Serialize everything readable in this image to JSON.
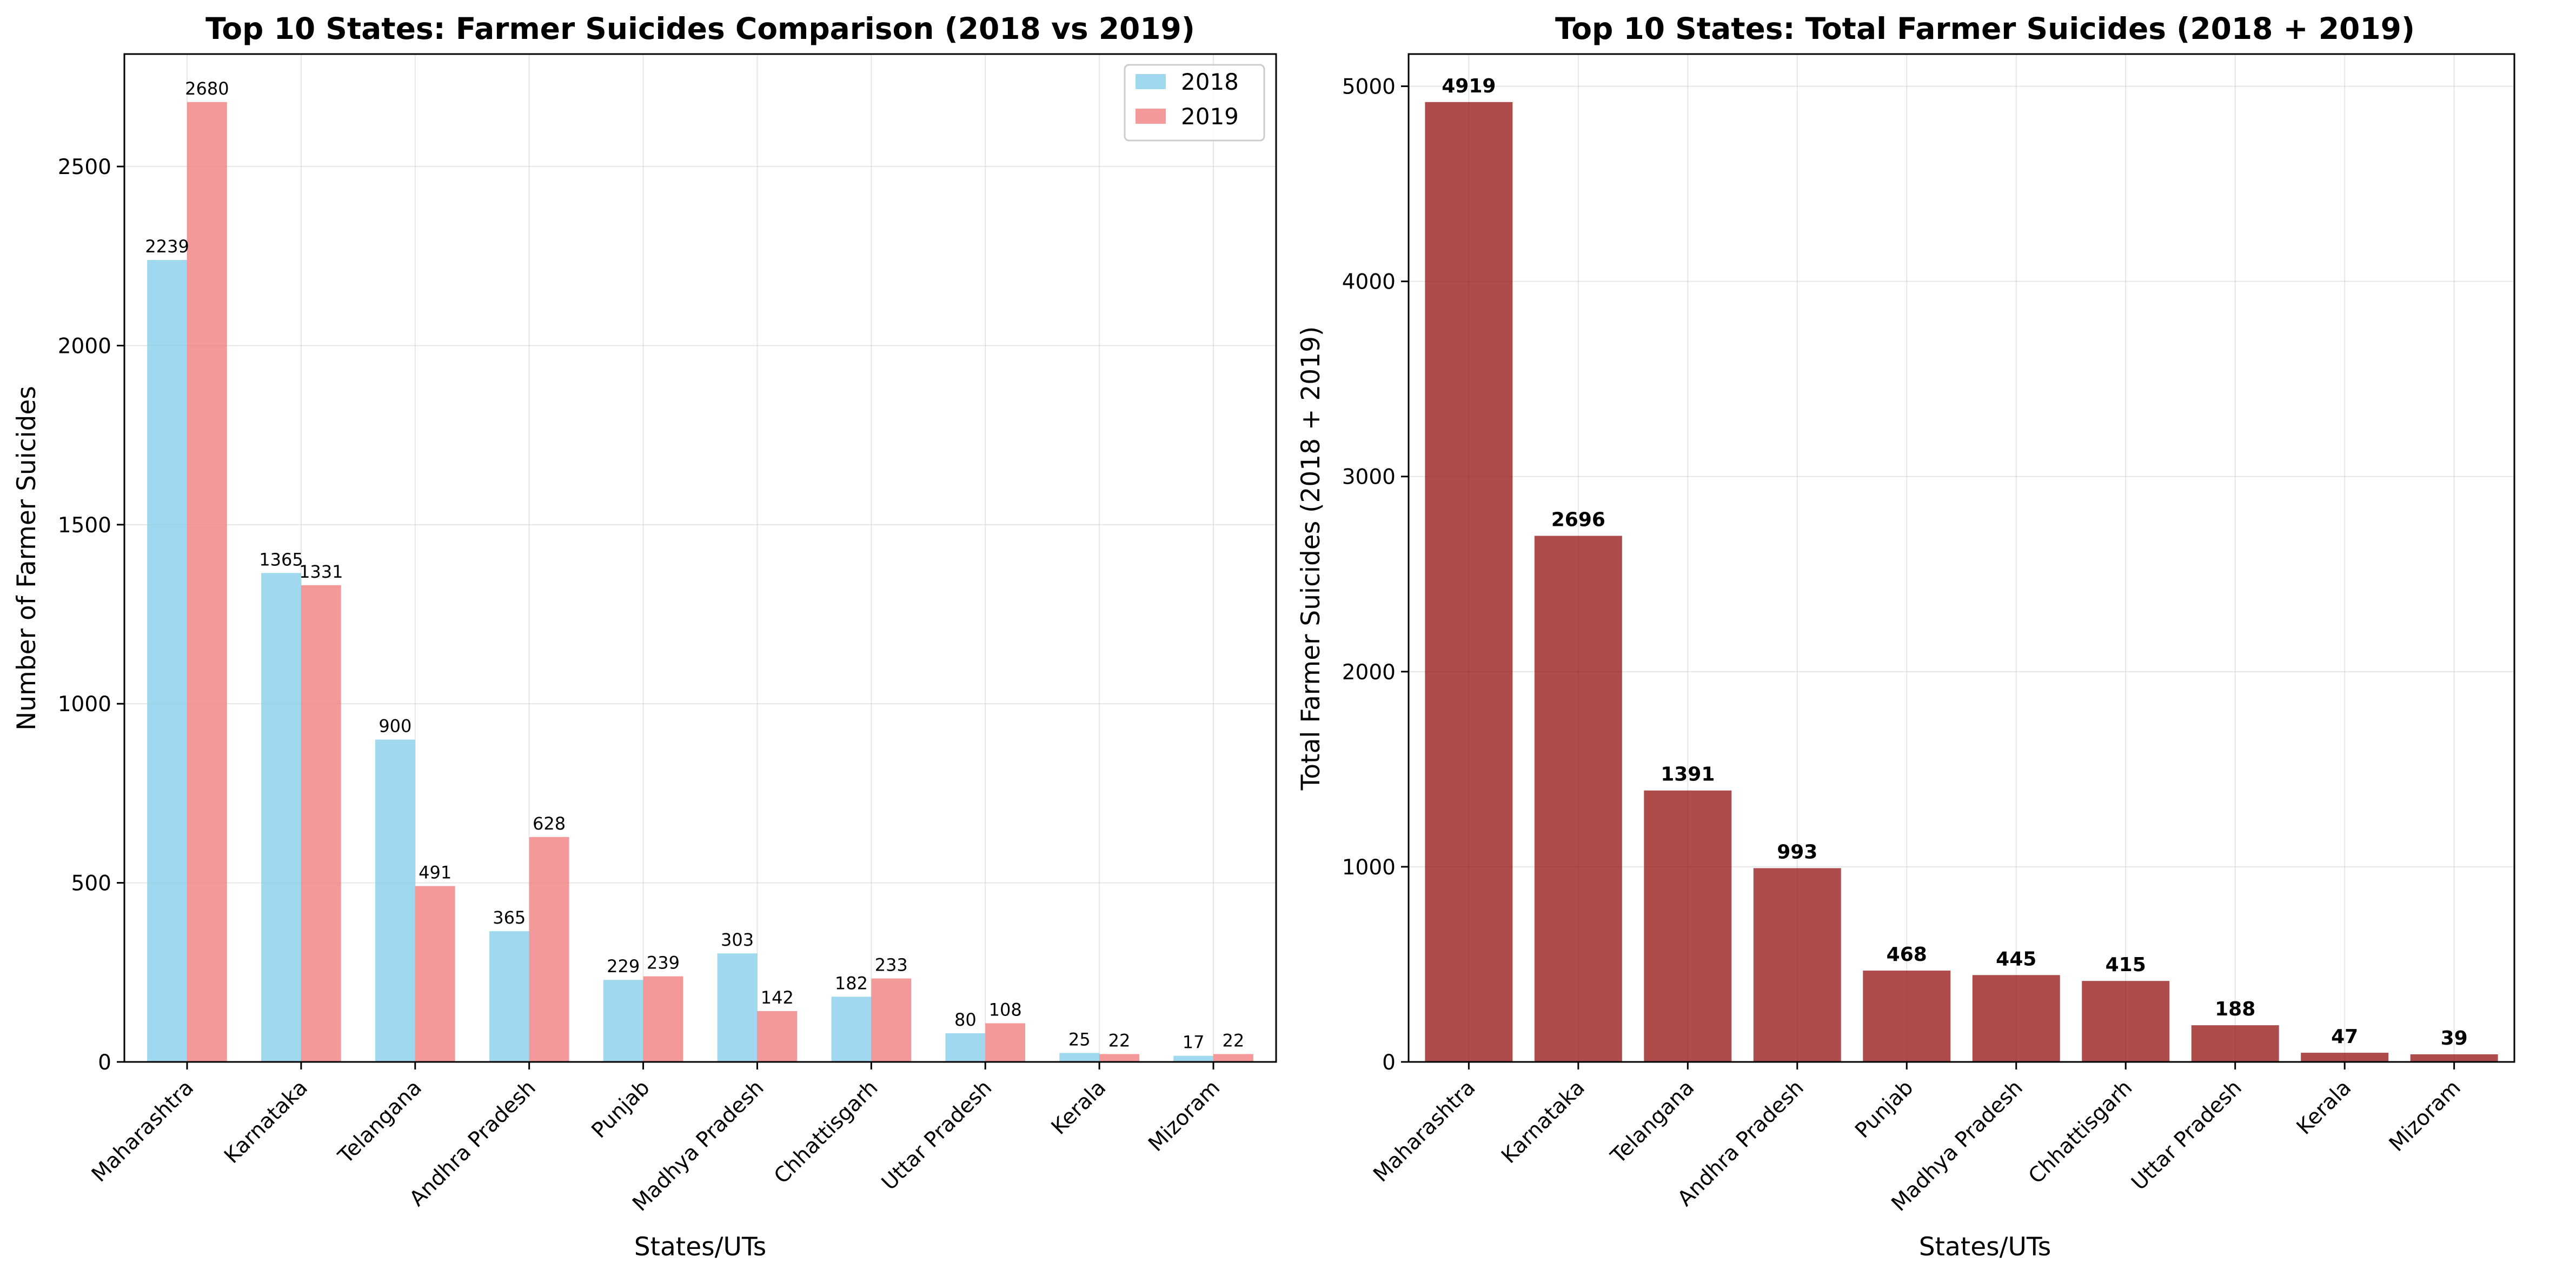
{
  "chart_data": [
    {
      "type": "bar",
      "title": "Top 10 States: Farmer Suicides Comparison (2018 vs 2019)",
      "xlabel": "States/UTs",
      "ylabel": "Number of Farmer Suicides",
      "categories": [
        "Maharashtra",
        "Karnataka",
        "Telangana",
        "Andhra Pradesh",
        "Punjab",
        "Madhya Pradesh",
        "Chhattisgarh",
        "Uttar Pradesh",
        "Kerala",
        "Mizoram"
      ],
      "series": [
        {
          "name": "2018",
          "color": "#87ceeb",
          "values": [
            2239,
            1365,
            900,
            365,
            229,
            303,
            182,
            80,
            25,
            17
          ]
        },
        {
          "name": "2019",
          "color": "#f08080",
          "values": [
            2680,
            1331,
            491,
            628,
            239,
            142,
            233,
            108,
            22,
            22
          ]
        }
      ],
      "ylim": [
        0,
        2814
      ],
      "yticks": [
        0,
        500,
        1000,
        1500,
        2000,
        2500
      ],
      "grid": true,
      "legend": "top-right",
      "data_labels": true
    },
    {
      "type": "bar",
      "title": "Top 10 States: Total Farmer Suicides (2018 + 2019)",
      "xlabel": "States/UTs",
      "ylabel": "Total Farmer Suicides (2018 + 2019)",
      "categories": [
        "Maharashtra",
        "Karnataka",
        "Telangana",
        "Andhra Pradesh",
        "Punjab",
        "Madhya Pradesh",
        "Chhattisgarh",
        "Uttar Pradesh",
        "Kerala",
        "Mizoram"
      ],
      "series": [
        {
          "color": "#8b0000",
          "values": [
            4919,
            2696,
            1391,
            993,
            468,
            445,
            415,
            188,
            47,
            39
          ]
        }
      ],
      "ylim": [
        0,
        5165
      ],
      "yticks": [
        0,
        1000,
        2000,
        3000,
        4000,
        5000
      ],
      "grid": true,
      "data_labels": true
    }
  ]
}
